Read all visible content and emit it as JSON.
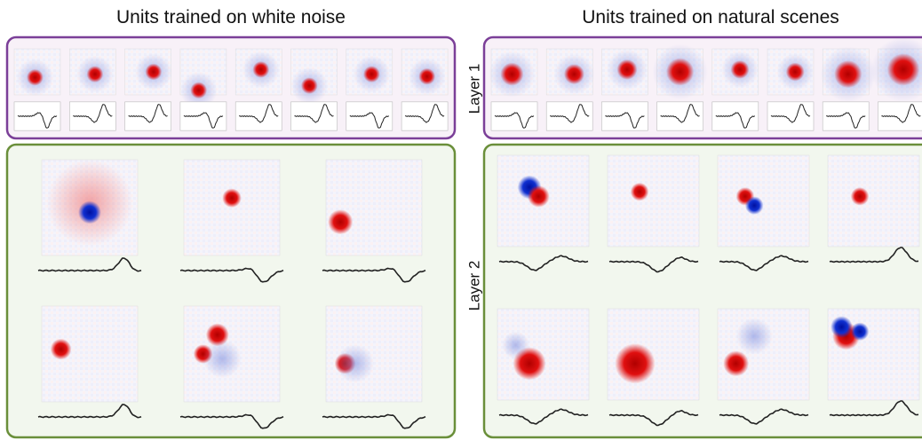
{
  "header": {
    "left_title": "Units trained on white noise",
    "right_title": "Units trained on natural scenes"
  },
  "layers": [
    {
      "label": "Layer 1"
    },
    {
      "label": "Layer 2"
    }
  ]
}
